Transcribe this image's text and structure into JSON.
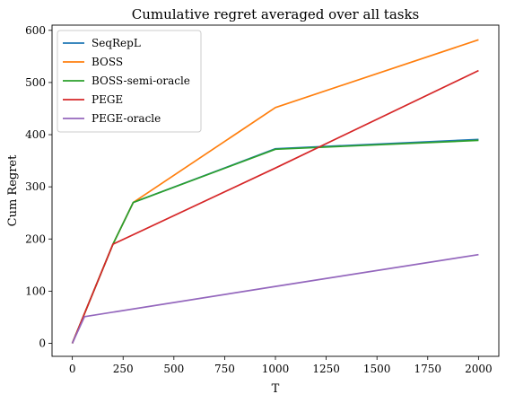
{
  "chart_data": {
    "type": "line",
    "title": "Cumulative regret averaged over all tasks",
    "xlabel": "T",
    "ylabel": "Cum Regret",
    "xlim": [
      -100,
      2100
    ],
    "ylim": [
      -25,
      610
    ],
    "xticks": [
      0,
      250,
      500,
      750,
      1000,
      1250,
      1500,
      1750,
      2000
    ],
    "yticks": [
      0,
      100,
      200,
      300,
      400,
      500,
      600
    ],
    "grid": false,
    "legend_position": "top-left",
    "series": [
      {
        "name": "SeqRepL",
        "color": "#1f77b4",
        "x": [
          0,
          200,
          300,
          1000,
          2000
        ],
        "y": [
          0,
          190,
          270,
          373,
          391
        ]
      },
      {
        "name": "BOSS",
        "color": "#ff7f0e",
        "x": [
          0,
          200,
          300,
          1000,
          2000
        ],
        "y": [
          0,
          190,
          270,
          452,
          582
        ]
      },
      {
        "name": "BOSS-semi-oracle",
        "color": "#2ca02c",
        "x": [
          0,
          200,
          300,
          1000,
          2000
        ],
        "y": [
          0,
          190,
          270,
          372,
          389
        ]
      },
      {
        "name": "PEGE",
        "color": "#d62728",
        "x": [
          0,
          200,
          1000,
          2000
        ],
        "y": [
          0,
          190,
          336,
          523
        ]
      },
      {
        "name": "PEGE-oracle",
        "color": "#9467bd",
        "x": [
          0,
          60,
          1000,
          2000
        ],
        "y": [
          0,
          51,
          109,
          170
        ]
      }
    ]
  }
}
